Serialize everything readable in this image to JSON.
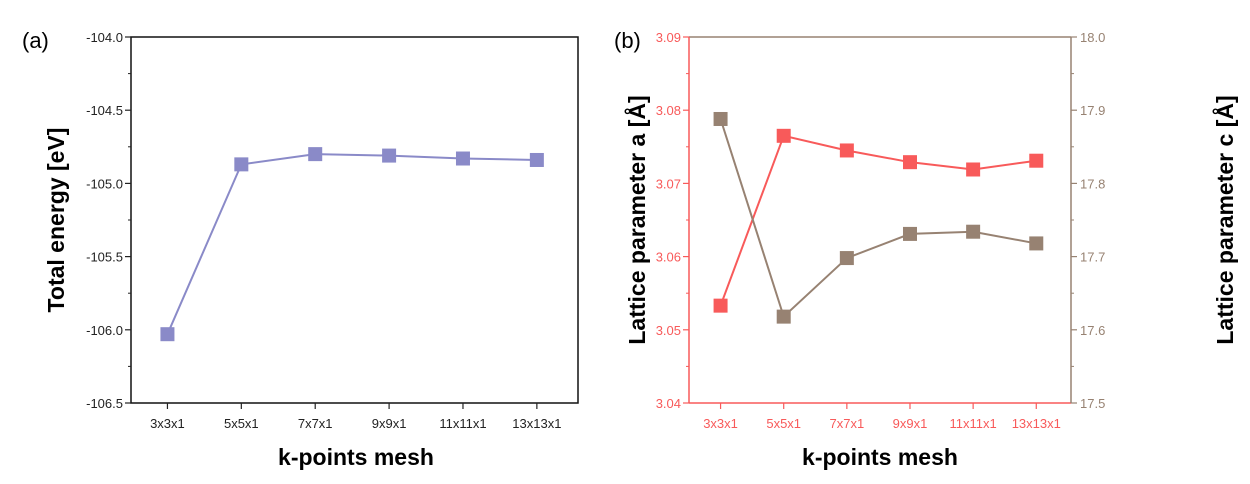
{
  "chart_data": [
    {
      "type": "line",
      "panel_label": "(a)",
      "categories": [
        "3x3x1",
        "5x5x1",
        "7x7x1",
        "9x9x1",
        "11x11x1",
        "13x13x1"
      ],
      "xlabel": "k-points mesh",
      "ylabel": "Total energy [eV]",
      "ylim": [
        -106.5,
        -104.0
      ],
      "yticks": [
        "-104.0",
        "-104.5",
        "-105.0",
        "-105.5",
        "-106.0",
        "-106.5"
      ],
      "grid": false,
      "series": [
        {
          "values": [
            -106.03,
            -104.87,
            -104.8,
            -104.81,
            -104.83,
            -104.84
          ],
          "color": "#8A8AC8",
          "marker": "square"
        }
      ]
    },
    {
      "type": "line",
      "panel_label": "(b)",
      "categories": [
        "3x3x1",
        "5x5x1",
        "7x7x1",
        "9x9x1",
        "11x11x1",
        "13x13x1"
      ],
      "xlabel": "k-points mesh",
      "ylabel": "Lattice parameter a [Å]",
      "ylabel_right": "Lattice parameter c [Å]",
      "ylim": [
        3.04,
        3.09
      ],
      "ylim_right": [
        17.5,
        18.0
      ],
      "yticks": [
        "3.09",
        "3.08",
        "3.07",
        "3.06",
        "3.05",
        "3.04"
      ],
      "yticks_right": [
        "18.0",
        "17.9",
        "17.8",
        "17.7",
        "17.6",
        "17.5"
      ],
      "grid": false,
      "series": [
        {
          "axis": "left",
          "values": [
            3.0533,
            3.0765,
            3.0745,
            3.0729,
            3.0719,
            3.0731
          ],
          "color": "#F85A5A",
          "marker": "square"
        },
        {
          "axis": "right",
          "values": [
            17.888,
            17.618,
            17.698,
            17.731,
            17.734,
            17.718
          ],
          "color": "#978272",
          "marker": "square"
        }
      ]
    }
  ]
}
